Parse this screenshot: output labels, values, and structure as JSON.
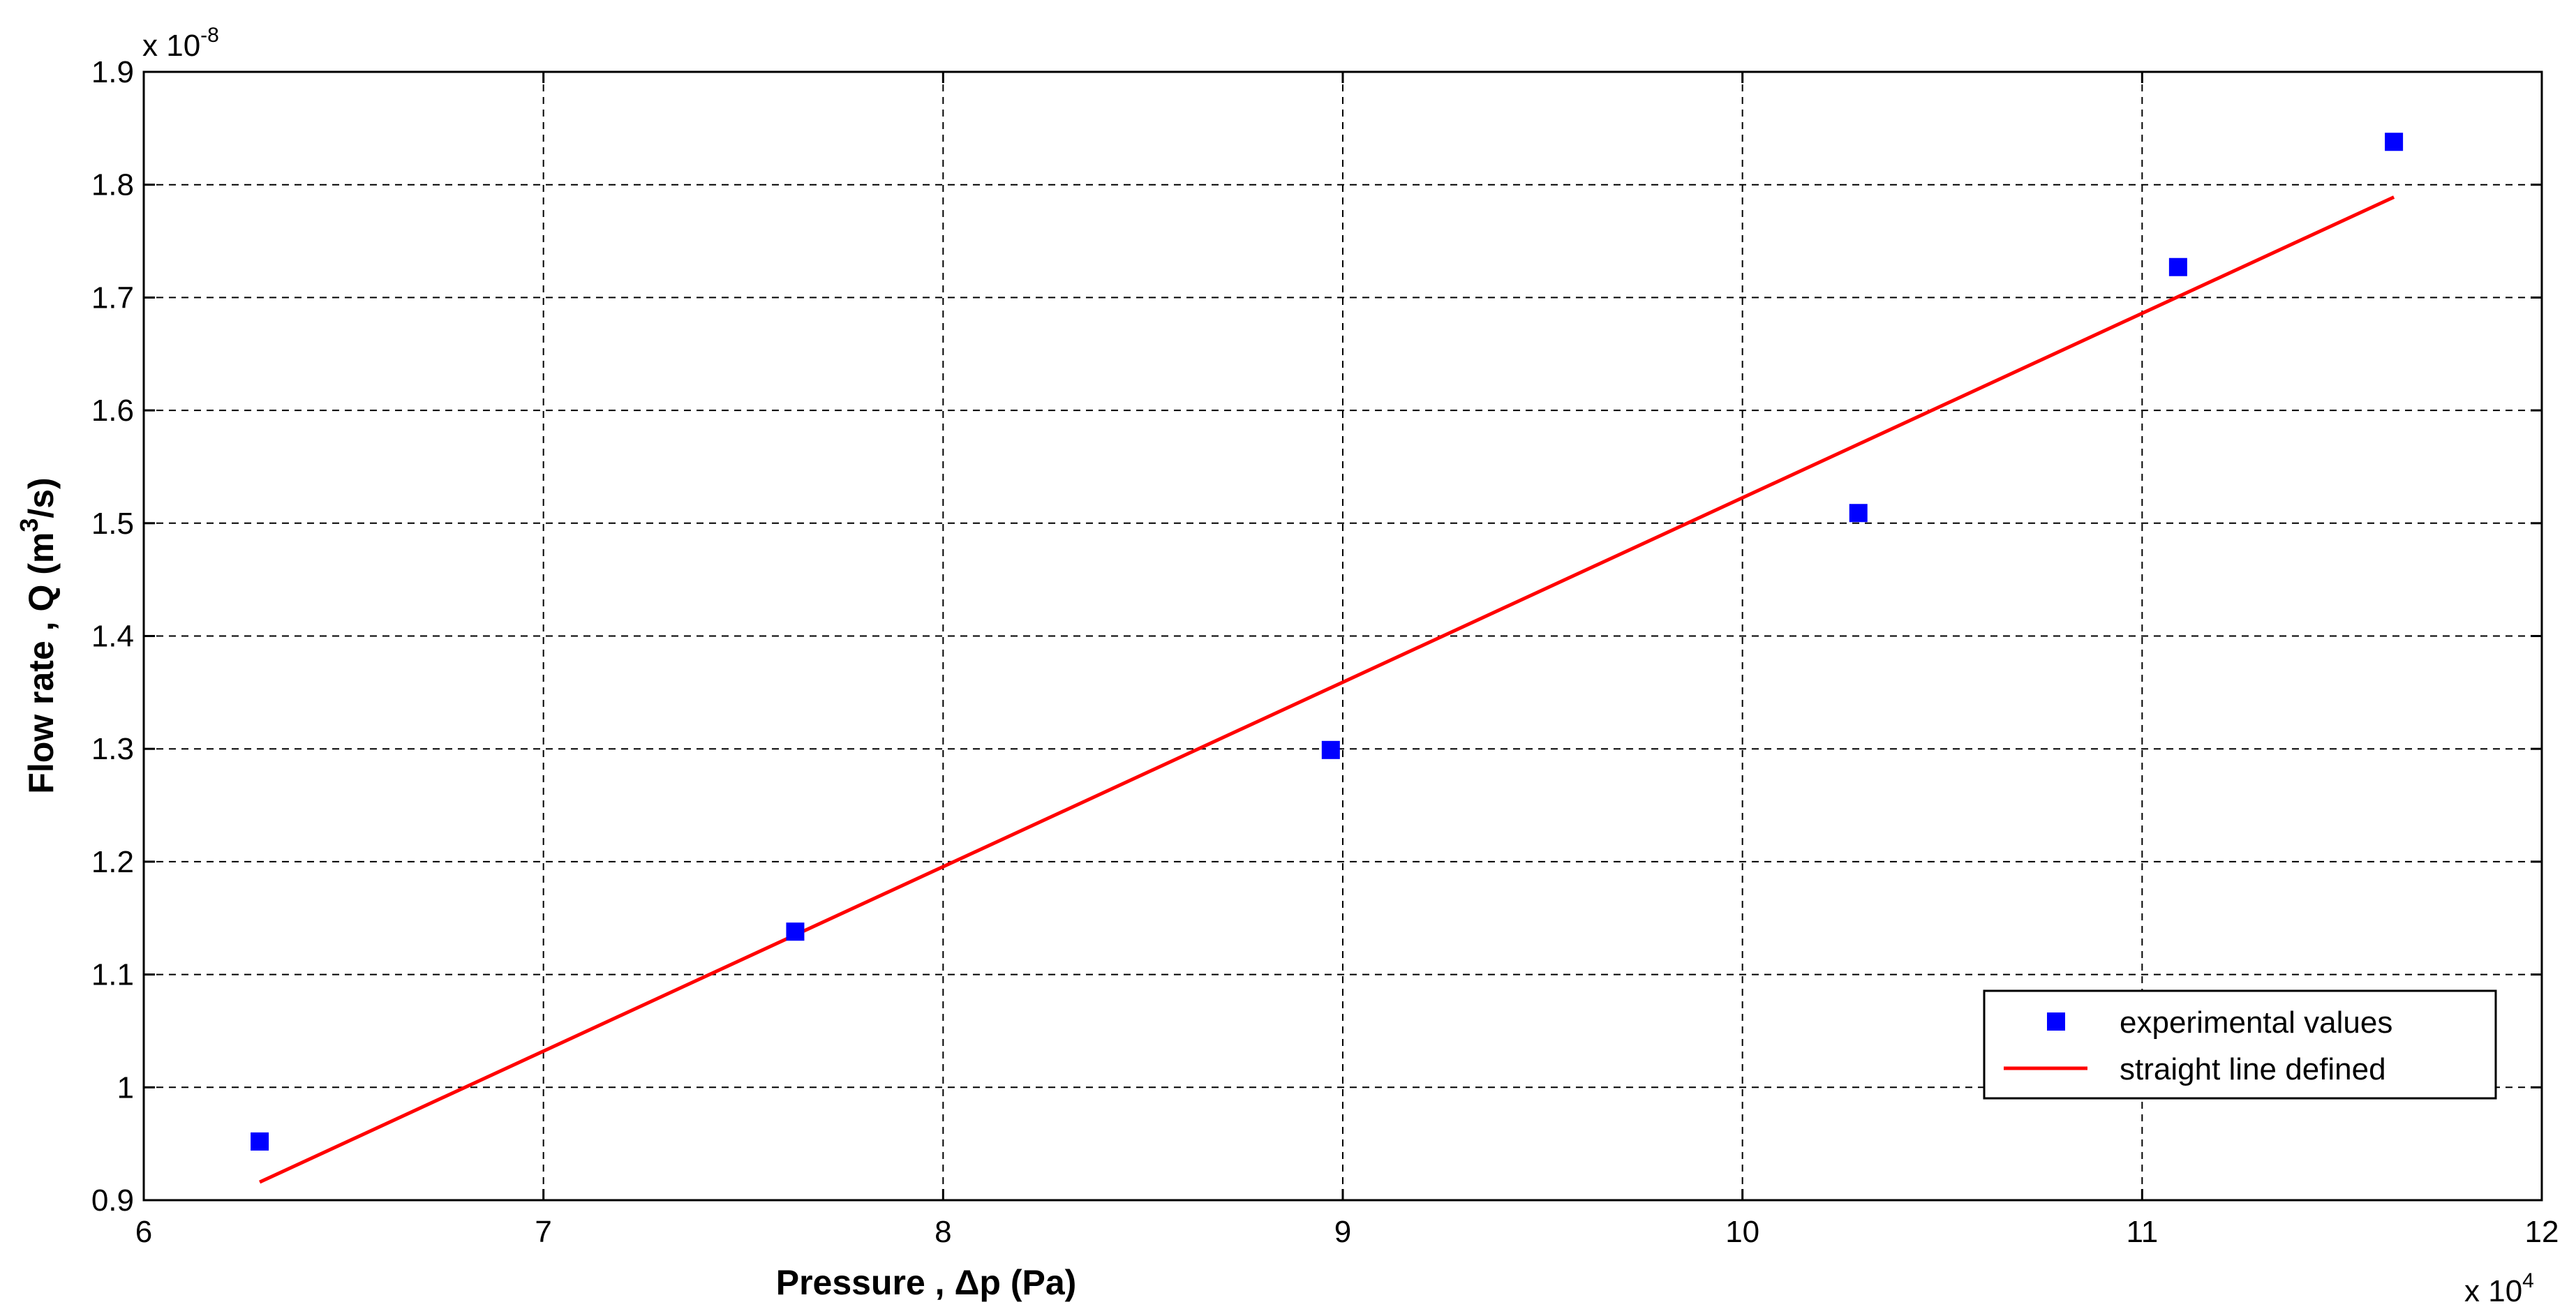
{
  "chart_data": {
    "type": "scatter",
    "xlabel": {
      "prefix": "Pressure , ",
      "symbol": "Δp",
      "suffix": " (Pa)"
    },
    "ylabel": {
      "prefix": "Flow rate , Q (m",
      "superscript": "3",
      "suffix": "/s)"
    },
    "x_exponent": {
      "base": "x 10",
      "power": "4"
    },
    "y_exponent": {
      "base": "x 10",
      "power": "-8"
    },
    "xlim": [
      6,
      12
    ],
    "ylim": [
      0.9,
      1.9
    ],
    "x_ticks": [
      6,
      7,
      8,
      9,
      10,
      11,
      12
    ],
    "x_tick_labels": [
      "6",
      "7",
      "8",
      "9",
      "10",
      "11",
      "12"
    ],
    "y_ticks": [
      0.9,
      1.0,
      1.1,
      1.2,
      1.3,
      1.4,
      1.5,
      1.6,
      1.7,
      1.8,
      1.9
    ],
    "y_tick_labels": [
      "0.9",
      "1",
      "1.1",
      "1.2",
      "1.3",
      "1.4",
      "1.5",
      "1.6",
      "1.7",
      "1.8",
      "1.9"
    ],
    "grid": true,
    "legend_position": "bottom-right",
    "series": [
      {
        "name": "experimental values",
        "kind": "marker",
        "color": "#0000ff",
        "x": [
          6.29,
          7.63,
          8.97,
          10.29,
          11.09,
          11.63
        ],
        "y": [
          0.952,
          1.138,
          1.299,
          1.509,
          1.727,
          1.838
        ]
      },
      {
        "name": "straight line defined",
        "kind": "line",
        "color": "#ff0000",
        "x": [
          6.29,
          11.63
        ],
        "y": [
          0.916,
          1.789
        ]
      }
    ]
  }
}
